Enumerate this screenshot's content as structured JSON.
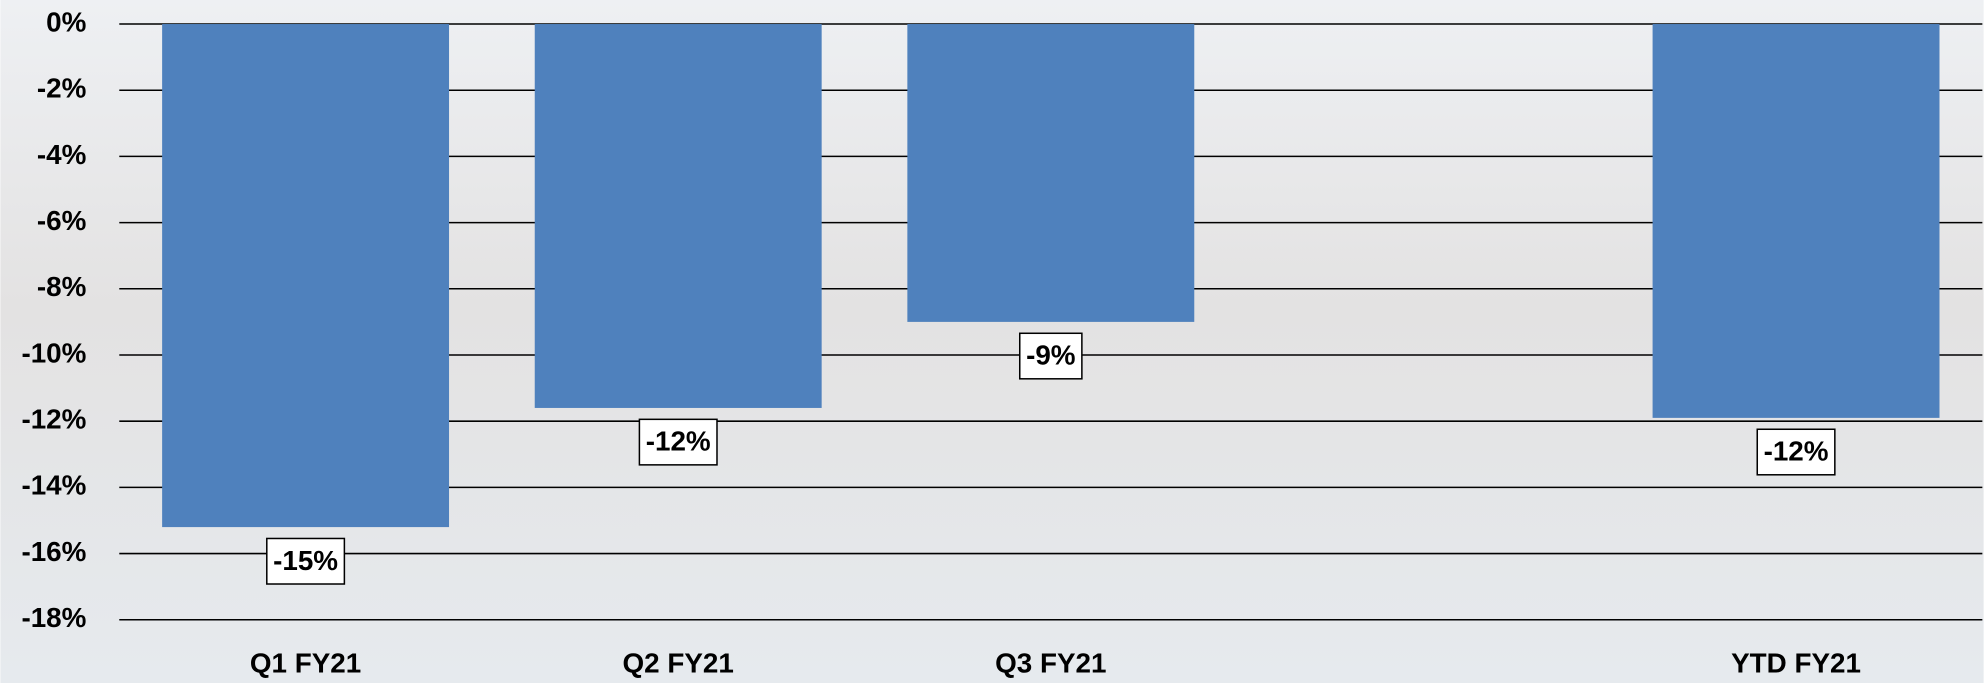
{
  "chart_data": {
    "type": "bar",
    "categories": [
      "Q1 FY21",
      "Q2 FY21",
      "Q3 FY21",
      null,
      "YTD FY21"
    ],
    "values": [
      -15.2,
      -11.6,
      -9.0,
      null,
      -11.9
    ],
    "value_labels": [
      "-15%",
      "-12%",
      "-9%",
      null,
      "-12%"
    ],
    "color": "#4f81bd",
    "ylim": [
      -18,
      0
    ],
    "yticks": [
      {
        "value": 0,
        "label": "0%"
      },
      {
        "value": -2,
        "label": "-2%"
      },
      {
        "value": -4,
        "label": "-4%"
      },
      {
        "value": -6,
        "label": "-6%"
      },
      {
        "value": -8,
        "label": "-8%"
      },
      {
        "value": -10,
        "label": "-10%"
      },
      {
        "value": -12,
        "label": "-12%"
      },
      {
        "value": -14,
        "label": "-14%"
      },
      {
        "value": -16,
        "label": "-16%"
      },
      {
        "value": -18,
        "label": "-18%"
      }
    ],
    "grid": true
  }
}
